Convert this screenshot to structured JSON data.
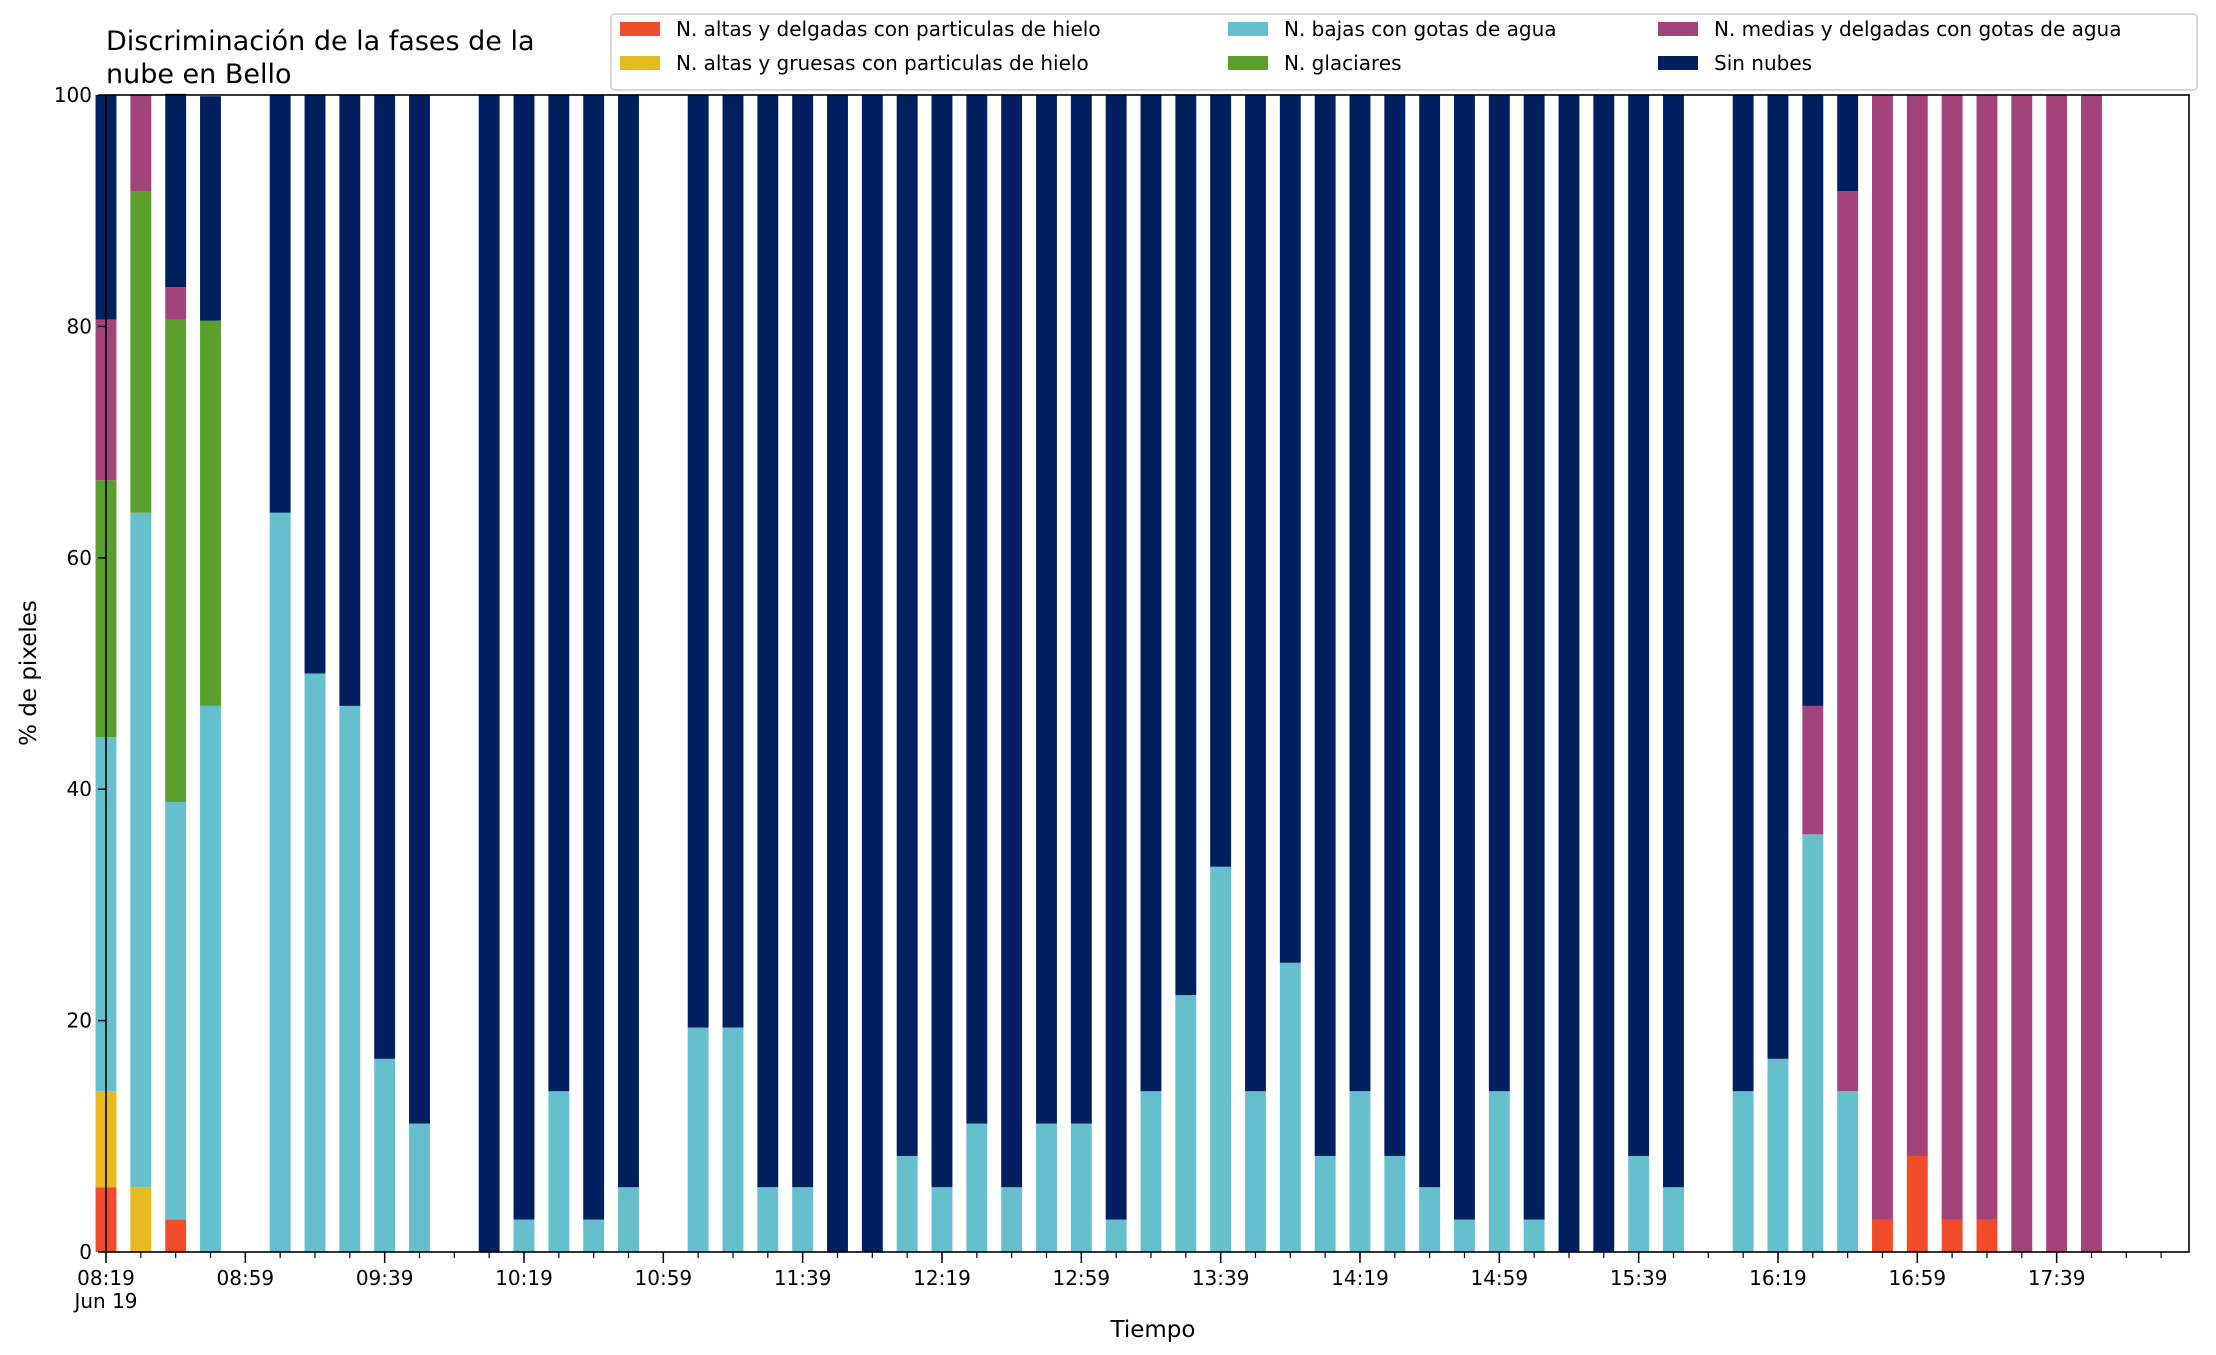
{
  "chart_data": {
    "type": "bar",
    "stacked": true,
    "title_lines": [
      "Discriminación de la fases de la",
      "nube en Bello"
    ],
    "xlabel": "Tiempo",
    "ylabel": "% de pixeles",
    "ylim": [
      0,
      100
    ],
    "yticks": [
      "0",
      "20",
      "40",
      "60",
      "80",
      "100"
    ],
    "grid": false,
    "legend_position": "top-right",
    "x_start_minutes": 499,
    "x_end_minutes": 1097,
    "bar_width_minutes": 6,
    "xtick_labels": [
      {
        "minute": 499,
        "label": "08:19",
        "sublabel": "Jun 19"
      },
      {
        "minute": 539,
        "label": "08:59"
      },
      {
        "minute": 579,
        "label": "09:39"
      },
      {
        "minute": 619,
        "label": "10:19"
      },
      {
        "minute": 659,
        "label": "10:59"
      },
      {
        "minute": 699,
        "label": "11:39"
      },
      {
        "minute": 739,
        "label": "12:19"
      },
      {
        "minute": 779,
        "label": "12:59"
      },
      {
        "minute": 819,
        "label": "13:39"
      },
      {
        "minute": 859,
        "label": "14:19"
      },
      {
        "minute": 899,
        "label": "14:59"
      },
      {
        "minute": 939,
        "label": "15:39"
      },
      {
        "minute": 979,
        "label": "16:19"
      },
      {
        "minute": 1019,
        "label": "16:59"
      },
      {
        "minute": 1059,
        "label": "17:39"
      }
    ],
    "series": [
      {
        "name": "N. altas y delgadas con particulas de hielo",
        "color": "#f04c2c",
        "legend_col": 0,
        "legend_row": 0
      },
      {
        "name": "N. altas y gruesas con particulas de hielo",
        "color": "#e8b820",
        "legend_col": 0,
        "legend_row": 1
      },
      {
        "name": "N. bajas con gotas de agua",
        "color": "#66bfcc",
        "legend_col": 1,
        "legend_row": 0
      },
      {
        "name": "N. glaciares",
        "color": "#5a9e2c",
        "legend_col": 1,
        "legend_row": 1
      },
      {
        "name": "N. medias y delgadas con gotas de agua",
        "color": "#a2437a",
        "legend_col": 2,
        "legend_row": 0
      },
      {
        "name": "Sin nubes",
        "color": "#001f5f",
        "legend_col": 2,
        "legend_row": 1
      }
    ],
    "bars": [
      {
        "minute": 499,
        "values": [
          5.6,
          8.3,
          30.6,
          22.2,
          13.9,
          19.4
        ]
      },
      {
        "minute": 509,
        "values": [
          0,
          5.6,
          58.3,
          27.8,
          8.3,
          0
        ]
      },
      {
        "minute": 519,
        "values": [
          2.8,
          0,
          36.1,
          41.7,
          2.8,
          16.7
        ]
      },
      {
        "minute": 529,
        "values": [
          0,
          0,
          47.2,
          33.3,
          0,
          19.4
        ]
      },
      {
        "minute": 549,
        "values": [
          0,
          0,
          63.9,
          0,
          0,
          36.1
        ]
      },
      {
        "minute": 559,
        "values": [
          0,
          0,
          50.0,
          0,
          0,
          50.0
        ]
      },
      {
        "minute": 569,
        "values": [
          0,
          0,
          47.2,
          0,
          0,
          52.8
        ]
      },
      {
        "minute": 579,
        "values": [
          0,
          0,
          16.7,
          0,
          0,
          83.3
        ]
      },
      {
        "minute": 589,
        "values": [
          0,
          0,
          11.1,
          0,
          0,
          88.9
        ]
      },
      {
        "minute": 609,
        "values": [
          0,
          0,
          0,
          0,
          0,
          100
        ]
      },
      {
        "minute": 619,
        "values": [
          0,
          0,
          2.8,
          0,
          0,
          97.2
        ]
      },
      {
        "minute": 629,
        "values": [
          0,
          0,
          13.9,
          0,
          0,
          86.1
        ]
      },
      {
        "minute": 639,
        "values": [
          0,
          0,
          2.8,
          0,
          0,
          97.2
        ]
      },
      {
        "minute": 649,
        "values": [
          0,
          0,
          5.6,
          0,
          0,
          94.4
        ]
      },
      {
        "minute": 669,
        "values": [
          0,
          0,
          19.4,
          0,
          0,
          80.6
        ]
      },
      {
        "minute": 679,
        "values": [
          0,
          0,
          19.4,
          0,
          0,
          80.6
        ]
      },
      {
        "minute": 689,
        "values": [
          0,
          0,
          5.6,
          0,
          0,
          94.4
        ]
      },
      {
        "minute": 699,
        "values": [
          0,
          0,
          5.6,
          0,
          0,
          94.4
        ]
      },
      {
        "minute": 709,
        "values": [
          0,
          0,
          0,
          0,
          0,
          100
        ]
      },
      {
        "minute": 719,
        "values": [
          0,
          0,
          0,
          0,
          0,
          100
        ]
      },
      {
        "minute": 729,
        "values": [
          0,
          0,
          8.3,
          0,
          0,
          91.7
        ]
      },
      {
        "minute": 739,
        "values": [
          0,
          0,
          5.6,
          0,
          0,
          94.4
        ]
      },
      {
        "minute": 749,
        "values": [
          0,
          0,
          11.1,
          0,
          0,
          88.9
        ]
      },
      {
        "minute": 759,
        "values": [
          0,
          0,
          5.6,
          0,
          0,
          94.4
        ]
      },
      {
        "minute": 769,
        "values": [
          0,
          0,
          11.1,
          0,
          0,
          88.9
        ]
      },
      {
        "minute": 779,
        "values": [
          0,
          0,
          11.1,
          0,
          0,
          88.9
        ]
      },
      {
        "minute": 789,
        "values": [
          0,
          0,
          2.8,
          0,
          0,
          97.2
        ]
      },
      {
        "minute": 799,
        "values": [
          0,
          0,
          13.9,
          0,
          0,
          86.1
        ]
      },
      {
        "minute": 809,
        "values": [
          0,
          0,
          22.2,
          0,
          0,
          77.8
        ]
      },
      {
        "minute": 819,
        "values": [
          0,
          0,
          33.3,
          0,
          0,
          66.7
        ]
      },
      {
        "minute": 829,
        "values": [
          0,
          0,
          13.9,
          0,
          0,
          86.1
        ]
      },
      {
        "minute": 839,
        "values": [
          0,
          0,
          25.0,
          0,
          0,
          75.0
        ]
      },
      {
        "minute": 849,
        "values": [
          0,
          0,
          8.3,
          0,
          0,
          91.7
        ]
      },
      {
        "minute": 859,
        "values": [
          0,
          0,
          13.9,
          0,
          0,
          86.1
        ]
      },
      {
        "minute": 869,
        "values": [
          0,
          0,
          8.3,
          0,
          0,
          91.7
        ]
      },
      {
        "minute": 879,
        "values": [
          0,
          0,
          5.6,
          0,
          0,
          94.4
        ]
      },
      {
        "minute": 889,
        "values": [
          0,
          0,
          2.8,
          0,
          0,
          97.2
        ]
      },
      {
        "minute": 899,
        "values": [
          0,
          0,
          13.9,
          0,
          0,
          86.1
        ]
      },
      {
        "minute": 909,
        "values": [
          0,
          0,
          2.8,
          0,
          0,
          97.2
        ]
      },
      {
        "minute": 919,
        "values": [
          0,
          0,
          0,
          0,
          0,
          100
        ]
      },
      {
        "minute": 929,
        "values": [
          0,
          0,
          0,
          0,
          0,
          100
        ]
      },
      {
        "minute": 939,
        "values": [
          0,
          0,
          8.3,
          0,
          0,
          91.7
        ]
      },
      {
        "minute": 949,
        "values": [
          0,
          0,
          5.6,
          0,
          0,
          94.4
        ]
      },
      {
        "minute": 969,
        "values": [
          0,
          0,
          13.9,
          0,
          0,
          86.1
        ]
      },
      {
        "minute": 979,
        "values": [
          0,
          0,
          16.7,
          0,
          0,
          83.3
        ]
      },
      {
        "minute": 989,
        "values": [
          0,
          0,
          36.1,
          0,
          11.1,
          52.8
        ]
      },
      {
        "minute": 999,
        "values": [
          0,
          0,
          13.9,
          0,
          77.8,
          8.3
        ]
      },
      {
        "minute": 1009,
        "values": [
          2.8,
          0,
          0,
          0,
          97.2,
          0
        ]
      },
      {
        "minute": 1019,
        "values": [
          8.3,
          0,
          0,
          0,
          91.7,
          0
        ]
      },
      {
        "minute": 1029,
        "values": [
          2.8,
          0,
          0,
          0,
          97.2,
          0
        ]
      },
      {
        "minute": 1039,
        "values": [
          2.8,
          0,
          0,
          0,
          97.2,
          0
        ]
      },
      {
        "minute": 1049,
        "values": [
          0,
          0,
          0,
          0,
          100,
          0
        ]
      },
      {
        "minute": 1059,
        "values": [
          0,
          0,
          0,
          0,
          100,
          0
        ]
      },
      {
        "minute": 1069,
        "values": [
          0,
          0,
          0,
          0,
          100,
          0
        ]
      }
    ]
  }
}
